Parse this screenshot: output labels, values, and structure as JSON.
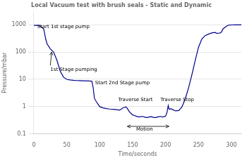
{
  "chart_data": {
    "type": "line",
    "title": "Local Vacuum test with brush seals - Static and Dynamic",
    "xlabel": "Time/seconds",
    "ylabel": "Pressure/mbar",
    "log": "y",
    "grid": "y",
    "color": "#00008B",
    "xlim": [
      0,
      315
    ],
    "xticks": [
      0,
      50,
      100,
      150,
      200,
      250,
      300
    ],
    "ylim": [
      0.1,
      3000
    ],
    "yticks": [
      0.1,
      1,
      10,
      100,
      1000
    ],
    "x": [
      0,
      1,
      5,
      10,
      15,
      18,
      20,
      25,
      30,
      35,
      40,
      45,
      50,
      55,
      60,
      65,
      70,
      75,
      80,
      85,
      88,
      90,
      92,
      95,
      100,
      105,
      110,
      115,
      120,
      125,
      130,
      132,
      135,
      138,
      140,
      142,
      145,
      148,
      150,
      152,
      155,
      158,
      160,
      162,
      165,
      168,
      170,
      172,
      175,
      178,
      180,
      182,
      185,
      188,
      190,
      192,
      195,
      198,
      200,
      202,
      203,
      204,
      205,
      206,
      207,
      208,
      210,
      215,
      220,
      225,
      230,
      235,
      240,
      245,
      250,
      255,
      260,
      265,
      270,
      275,
      278,
      280,
      283,
      285,
      287,
      290,
      293,
      295,
      297,
      300,
      302,
      305,
      310,
      315
    ],
    "values": [
      950,
      950,
      940,
      900,
      700,
      300,
      200,
      130,
      100,
      50,
      20,
      12,
      10,
      9.5,
      9.2,
      9.0,
      8.9,
      8.8,
      8.8,
      8.7,
      8.6,
      5.0,
      2.0,
      1.5,
      1.0,
      0.9,
      0.85,
      0.82,
      0.8,
      0.78,
      0.75,
      0.8,
      0.9,
      0.95,
      0.98,
      0.85,
      0.65,
      0.55,
      0.5,
      0.48,
      0.45,
      0.43,
      0.42,
      0.43,
      0.44,
      0.42,
      0.4,
      0.4,
      0.42,
      0.43,
      0.42,
      0.4,
      0.4,
      0.42,
      0.43,
      0.44,
      0.42,
      0.43,
      0.45,
      0.6,
      0.8,
      1.1,
      0.85,
      0.8,
      0.82,
      0.85,
      0.8,
      0.7,
      0.72,
      1.0,
      2.0,
      5.0,
      15,
      50,
      150,
      300,
      400,
      450,
      500,
      520,
      480,
      490,
      500,
      550,
      700,
      800,
      900,
      950,
      970,
      980,
      980,
      990,
      990,
      990
    ],
    "annotations": [
      {
        "text": "Start 1st stage pump",
        "x": 5,
        "y": 750
      },
      {
        "text": "1st Stage pumping",
        "x": 25,
        "y": 20,
        "arrow_to": [
          27,
          100
        ]
      },
      {
        "text": "Start 2nd Stage pump",
        "x": 93,
        "y": 6.5
      },
      {
        "text": "Traverse Start",
        "x": 128,
        "y": 1.6
      },
      {
        "text": "Traverse Stop",
        "x": 192,
        "y": 1.6
      },
      {
        "text": "Motion",
        "x": 168,
        "y": 0.13,
        "span": [
          142,
          205
        ],
        "span_y": 0.19
      }
    ]
  }
}
